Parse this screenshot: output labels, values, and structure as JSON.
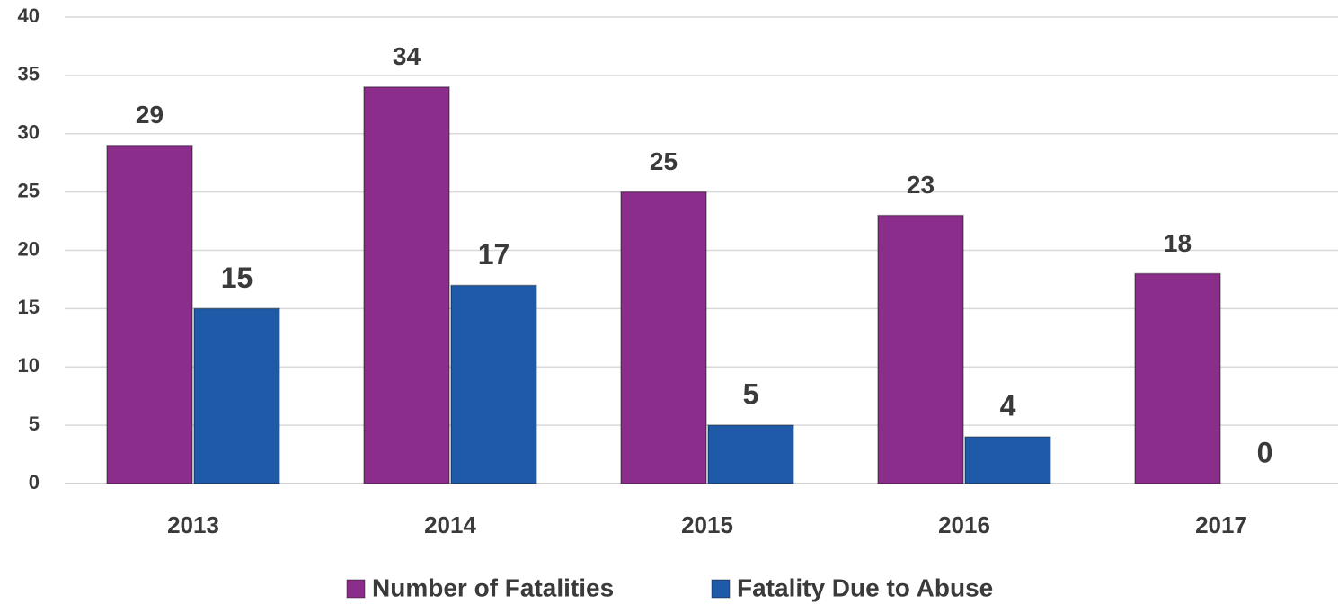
{
  "chart_data": {
    "type": "bar",
    "categories": [
      "2013",
      "2014",
      "2015",
      "2016",
      "2017"
    ],
    "series": [
      {
        "name": "Number of Fatalities",
        "color": "#8b2d8b",
        "values": [
          29,
          34,
          25,
          23,
          18
        ]
      },
      {
        "name": "Fatality Due to Abuse",
        "color": "#1f5aa8",
        "values": [
          15,
          17,
          5,
          4,
          0
        ]
      }
    ],
    "ylim": [
      0,
      40
    ],
    "yticks": [
      0,
      5,
      10,
      15,
      20,
      25,
      30,
      35,
      40
    ],
    "grid": true,
    "legend": "bottom"
  }
}
